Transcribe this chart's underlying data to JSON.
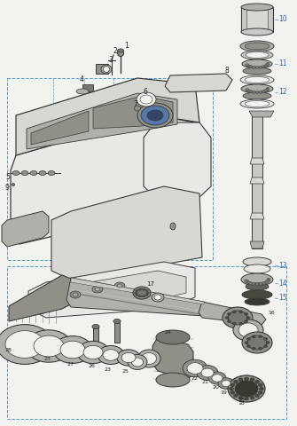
{
  "bg_color": "#f2f2ee",
  "lc": "#3a3a3a",
  "dc": "#5599cc",
  "gray1": "#c8c8c4",
  "gray2": "#b0b0ab",
  "gray3": "#909088",
  "gray4": "#787872",
  "gray5": "#606058",
  "white1": "#e8e8e4",
  "white2": "#d8d8d2",
  "white3": "#f0f0ec",
  "dark1": "#484840",
  "dark2": "#383830",
  "label_color": "#222222",
  "label_blue": "#3366aa"
}
